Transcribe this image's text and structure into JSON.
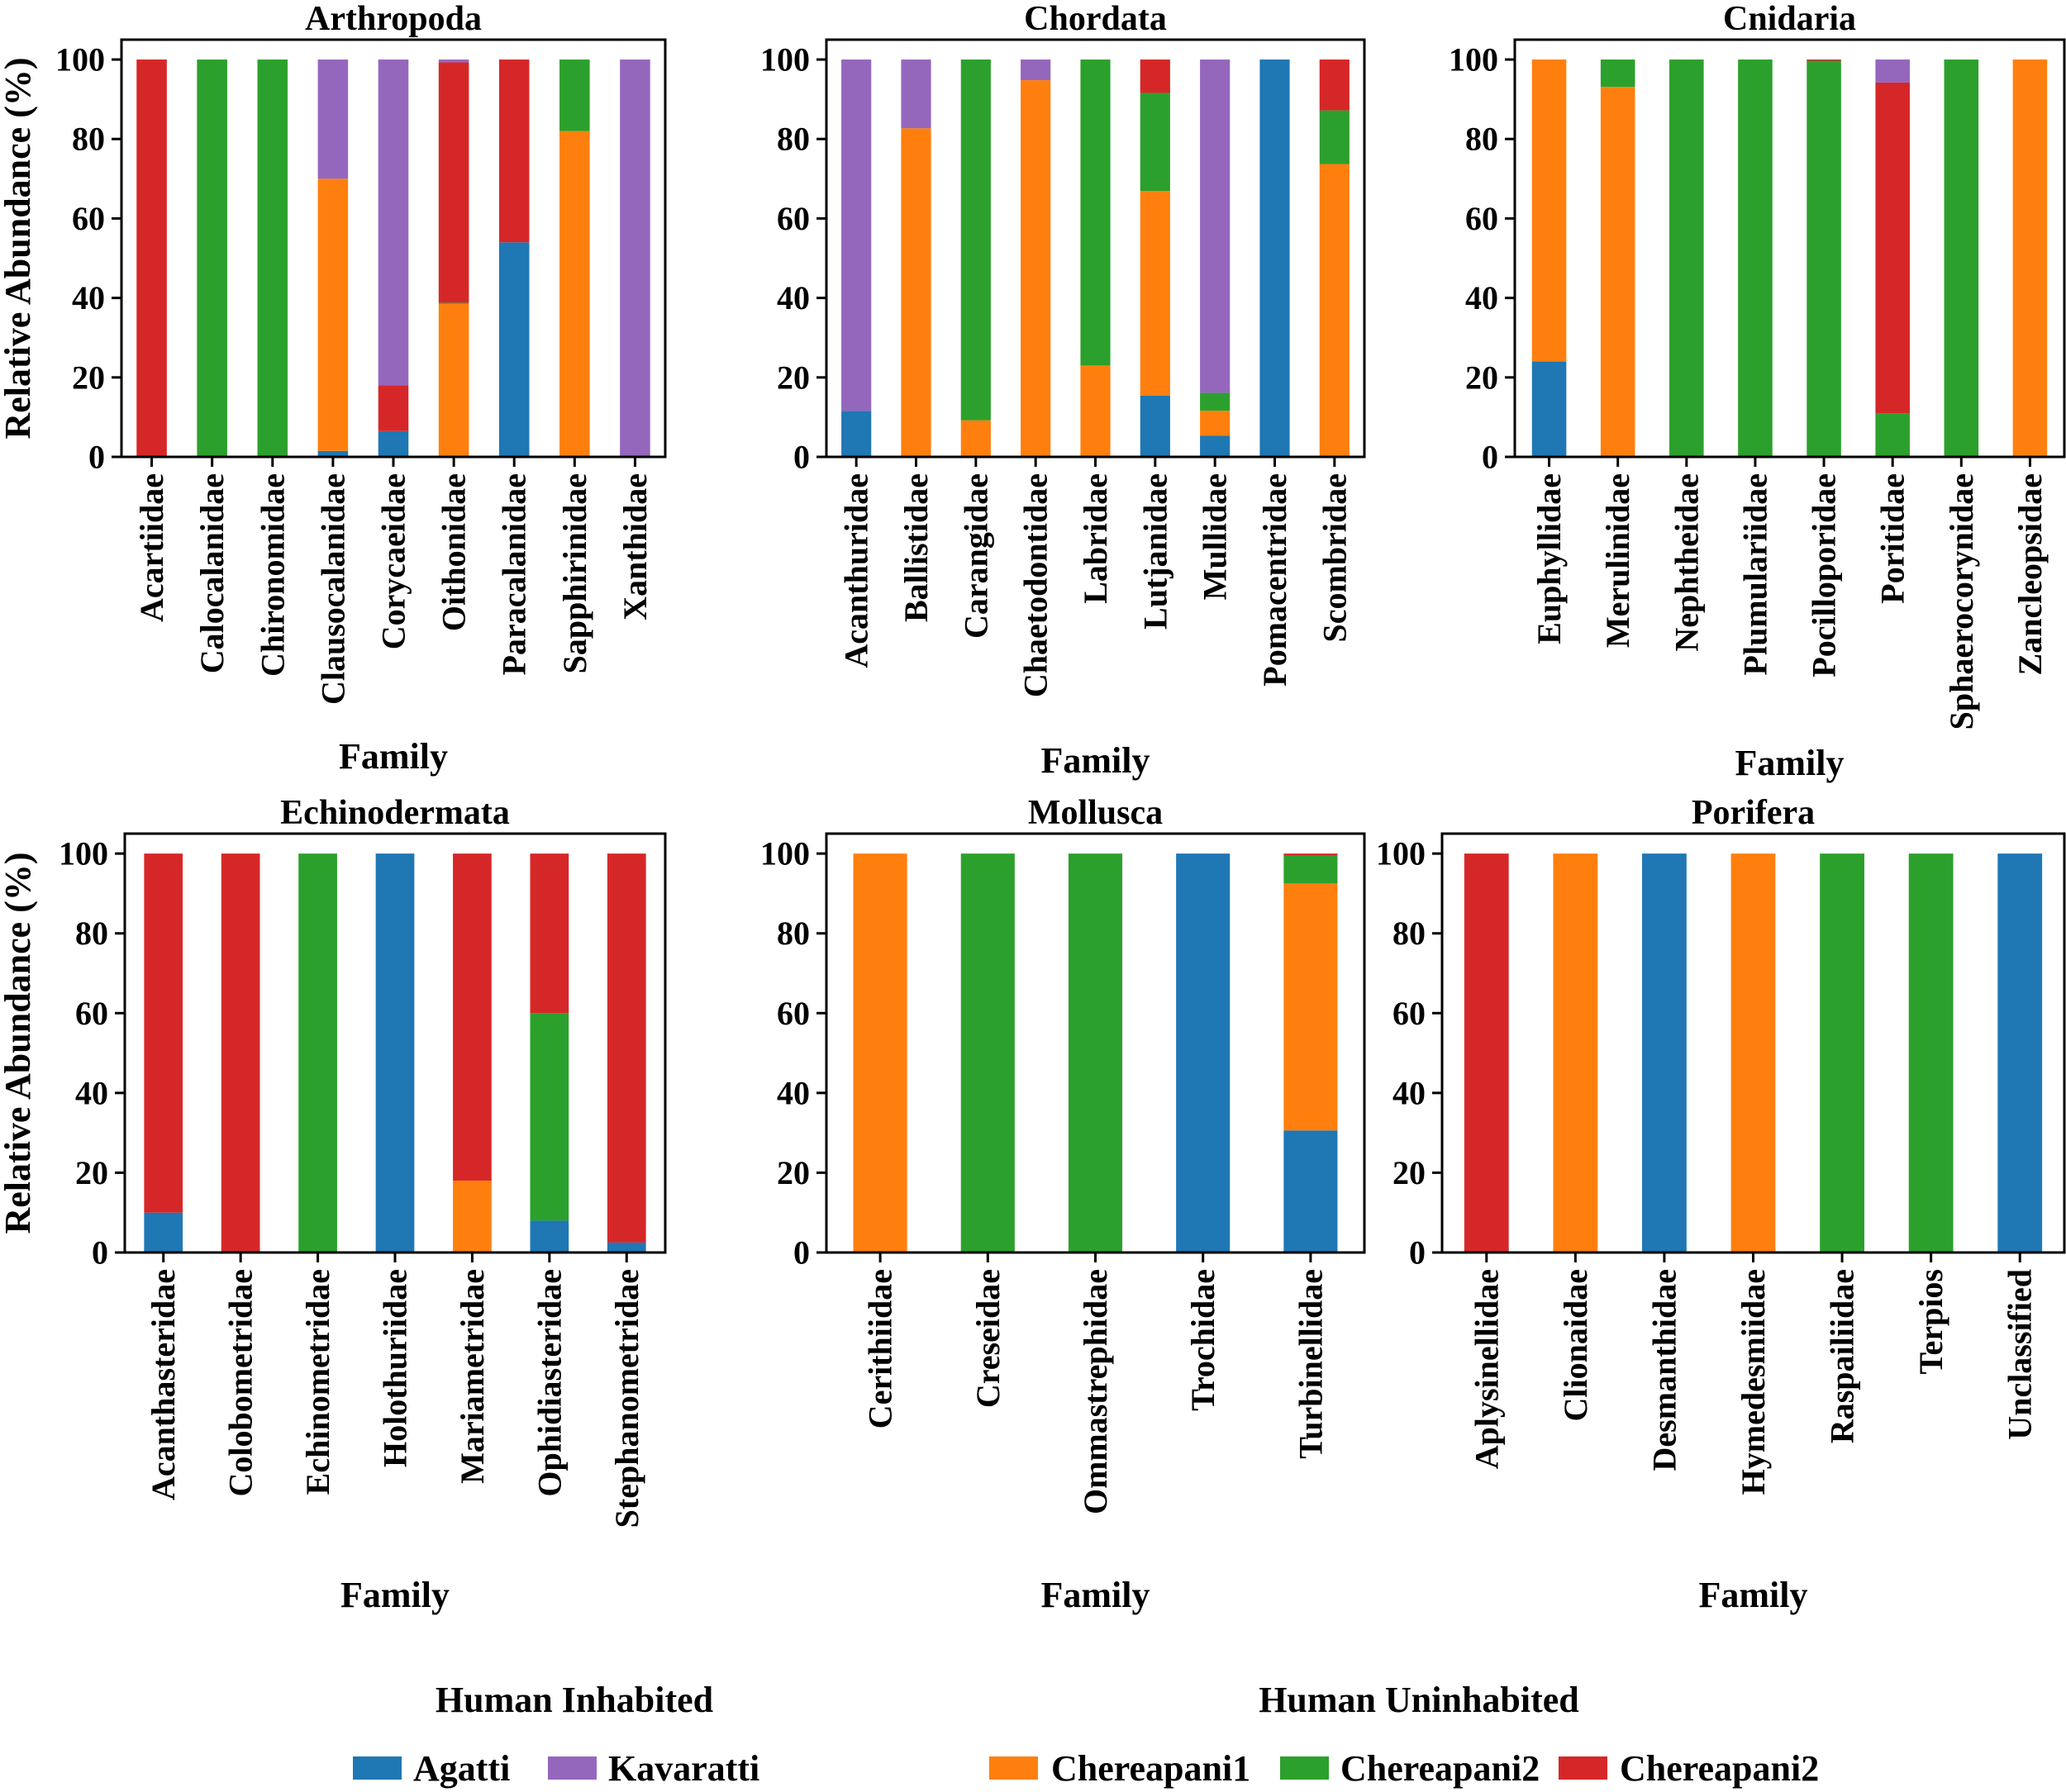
{
  "colors": {
    "Agatti": "#1f77b4",
    "Chereapani1": "#ff7f0e",
    "Chereapani2_green": "#2ca02c",
    "Chereapani2_red": "#d62728",
    "Kavaratti": "#9467bd"
  },
  "legend": {
    "group_inhabited": "Human Inhabited",
    "group_uninhabited": "Human Uninhabited",
    "items": [
      {
        "label": "Agatti",
        "color": "#1f77b4"
      },
      {
        "label": "Kavaratti",
        "color": "#9467bd"
      },
      {
        "label": "Chereapani1",
        "color": "#ff7f0e"
      },
      {
        "label": "Chereapani2",
        "color": "#2ca02c"
      },
      {
        "label": "Chereapani2",
        "color": "#d62728"
      }
    ]
  },
  "chart_data": [
    {
      "type": "bar",
      "stacked": true,
      "title": "Arthropoda",
      "xlabel": "Family",
      "ylabel": "Relative Abundance (%)",
      "ylim": [
        0,
        105
      ],
      "yticks": [
        0,
        20,
        40,
        60,
        80,
        100
      ],
      "categories": [
        "Acartiidae",
        "Calocalanidae",
        "Chironomidae",
        "Clausocalanidae",
        "Corycaeidae",
        "Oithonidae",
        "Paracalanidae",
        "Sapphirinidae",
        "Xanthidae"
      ],
      "series": [
        {
          "name": "Agatti",
          "color": "#1f77b4",
          "values": [
            0,
            0,
            0,
            1.5,
            6.5,
            0,
            54,
            0,
            0
          ]
        },
        {
          "name": "Chereapani1",
          "color": "#ff7f0e",
          "values": [
            0,
            0,
            0,
            68.5,
            0,
            38.5,
            0,
            82,
            0
          ]
        },
        {
          "name": "Chereapani2",
          "color": "#2ca02c",
          "values": [
            0,
            100,
            100,
            0,
            0,
            0.3,
            0,
            18,
            0
          ]
        },
        {
          "name": "Chereapani2",
          "color": "#d62728",
          "values": [
            100,
            0,
            0,
            0,
            11.5,
            60.5,
            46,
            0,
            0
          ]
        },
        {
          "name": "Kavaratti",
          "color": "#9467bd",
          "values": [
            0,
            0,
            0,
            30,
            82,
            0.7,
            0,
            0,
            100
          ]
        }
      ]
    },
    {
      "type": "bar",
      "stacked": true,
      "title": "Chordata",
      "xlabel": "Family",
      "ylabel": "",
      "ylim": [
        0,
        105
      ],
      "yticks": [
        0,
        20,
        40,
        60,
        80,
        100
      ],
      "categories": [
        "Acanthuridae",
        "Ballistidae",
        "Carangidae",
        "Chaetodontidae",
        "Labridae",
        "Lutjanidae",
        "Mullidae",
        "Pomacentridae",
        "Scombridae"
      ],
      "series": [
        {
          "name": "Agatti",
          "color": "#1f77b4",
          "values": [
            11.6,
            0,
            0,
            0.3,
            0,
            15.4,
            5.3,
            100,
            0
          ]
        },
        {
          "name": "Chereapani1",
          "color": "#ff7f0e",
          "values": [
            0,
            82.7,
            9.2,
            94.5,
            23,
            51.5,
            6.3,
            0,
            73.7
          ]
        },
        {
          "name": "Chereapani2",
          "color": "#2ca02c",
          "values": [
            0,
            0,
            90.8,
            0,
            77,
            24.7,
            4.5,
            0,
            13.5
          ]
        },
        {
          "name": "Chereapani2",
          "color": "#d62728",
          "values": [
            0,
            0,
            0,
            0,
            0,
            8.4,
            0,
            0,
            12.8
          ]
        },
        {
          "name": "Kavaratti",
          "color": "#9467bd",
          "values": [
            88.4,
            17.3,
            0,
            5.2,
            0,
            0,
            83.9,
            0,
            0
          ]
        }
      ]
    },
    {
      "type": "bar",
      "stacked": true,
      "title": "Cnidaria",
      "xlabel": "Family",
      "ylabel": "",
      "ylim": [
        0,
        105
      ],
      "yticks": [
        0,
        20,
        40,
        60,
        80,
        100
      ],
      "categories": [
        "Euphyllidae",
        "Merulinidae",
        "Nephtheidae",
        "Plumulariidae",
        "Pocilloporidae",
        "Poritidae",
        "Sphaerocorynidae",
        "Zancleopsidae"
      ],
      "series": [
        {
          "name": "Agatti",
          "color": "#1f77b4",
          "values": [
            24,
            0,
            0,
            0,
            0,
            0,
            0,
            0
          ]
        },
        {
          "name": "Chereapani1",
          "color": "#ff7f0e",
          "values": [
            76,
            93.1,
            0,
            0,
            0,
            0,
            0,
            100
          ]
        },
        {
          "name": "Chereapani2",
          "color": "#2ca02c",
          "values": [
            0,
            6.9,
            100,
            100,
            99.7,
            11,
            100,
            0
          ]
        },
        {
          "name": "Chereapani2",
          "color": "#d62728",
          "values": [
            0,
            0,
            0,
            0,
            0.3,
            83.2,
            0,
            0
          ]
        },
        {
          "name": "Kavaratti",
          "color": "#9467bd",
          "values": [
            0,
            0,
            0,
            0,
            0,
            5.8,
            0,
            0
          ]
        }
      ]
    },
    {
      "type": "bar",
      "stacked": true,
      "title": "Echinodermata",
      "xlabel": "Family",
      "ylabel": "Relative Abundance (%)",
      "ylim": [
        0,
        105
      ],
      "yticks": [
        0,
        20,
        40,
        60,
        80,
        100
      ],
      "categories": [
        "Acanthasteridae",
        "Colobometridae",
        "Echinometridae",
        "Holothuriidae",
        "Mariametridae",
        "Ophidiasteridae",
        "Stephanometridae"
      ],
      "series": [
        {
          "name": "Agatti",
          "color": "#1f77b4",
          "values": [
            10,
            0,
            0,
            100,
            0,
            8,
            2.5
          ]
        },
        {
          "name": "Chereapani1",
          "color": "#ff7f0e",
          "values": [
            0,
            0,
            0,
            0,
            18,
            0,
            0
          ]
        },
        {
          "name": "Chereapani2",
          "color": "#2ca02c",
          "values": [
            0,
            0,
            100,
            0,
            0,
            52,
            0
          ]
        },
        {
          "name": "Chereapani2",
          "color": "#d62728",
          "values": [
            90,
            100,
            0,
            0,
            82,
            40,
            97.5
          ]
        },
        {
          "name": "Kavaratti",
          "color": "#9467bd",
          "values": [
            0,
            0,
            0,
            0,
            0,
            0,
            0
          ]
        }
      ]
    },
    {
      "type": "bar",
      "stacked": true,
      "title": "Mollusca",
      "xlabel": "Family",
      "ylabel": "",
      "ylim": [
        0,
        105
      ],
      "yticks": [
        0,
        20,
        40,
        60,
        80,
        100
      ],
      "categories": [
        "Cerithiidae",
        "Creseidae",
        "Ommastrephidae",
        "Trochidae",
        "Turbinellidae"
      ],
      "series": [
        {
          "name": "Agatti",
          "color": "#1f77b4",
          "values": [
            0,
            0,
            0,
            100,
            30.6
          ]
        },
        {
          "name": "Chereapani1",
          "color": "#ff7f0e",
          "values": [
            100,
            0,
            0,
            0,
            61.9
          ]
        },
        {
          "name": "Chereapani2",
          "color": "#2ca02c",
          "values": [
            0,
            100,
            100,
            0,
            7
          ]
        },
        {
          "name": "Chereapani2",
          "color": "#d62728",
          "values": [
            0,
            0,
            0,
            0,
            0.5
          ]
        },
        {
          "name": "Kavaratti",
          "color": "#9467bd",
          "values": [
            0,
            0,
            0,
            0,
            0
          ]
        }
      ]
    },
    {
      "type": "bar",
      "stacked": true,
      "title": "Porifera",
      "xlabel": "Family",
      "ylabel": "",
      "ylim": [
        0,
        105
      ],
      "yticks": [
        0,
        20,
        40,
        60,
        80,
        100
      ],
      "categories": [
        "Aplysinellidae",
        "Clionaidae",
        "Desmanthidae",
        "Hymedesmiidae",
        "Raspailiidae",
        "Terpios",
        "Unclassified"
      ],
      "series": [
        {
          "name": "Agatti",
          "color": "#1f77b4",
          "values": [
            0,
            0,
            100,
            0,
            0,
            0,
            100
          ]
        },
        {
          "name": "Chereapani1",
          "color": "#ff7f0e",
          "values": [
            0,
            100,
            0,
            100,
            0,
            0,
            0
          ]
        },
        {
          "name": "Chereapani2",
          "color": "#2ca02c",
          "values": [
            0,
            0,
            0,
            0,
            100,
            100,
            0
          ]
        },
        {
          "name": "Chereapani2",
          "color": "#d62728",
          "values": [
            100,
            0,
            0,
            0,
            0,
            0,
            0
          ]
        },
        {
          "name": "Kavaratti",
          "color": "#9467bd",
          "values": [
            0,
            0,
            0,
            0,
            0,
            0,
            0
          ]
        }
      ]
    }
  ]
}
